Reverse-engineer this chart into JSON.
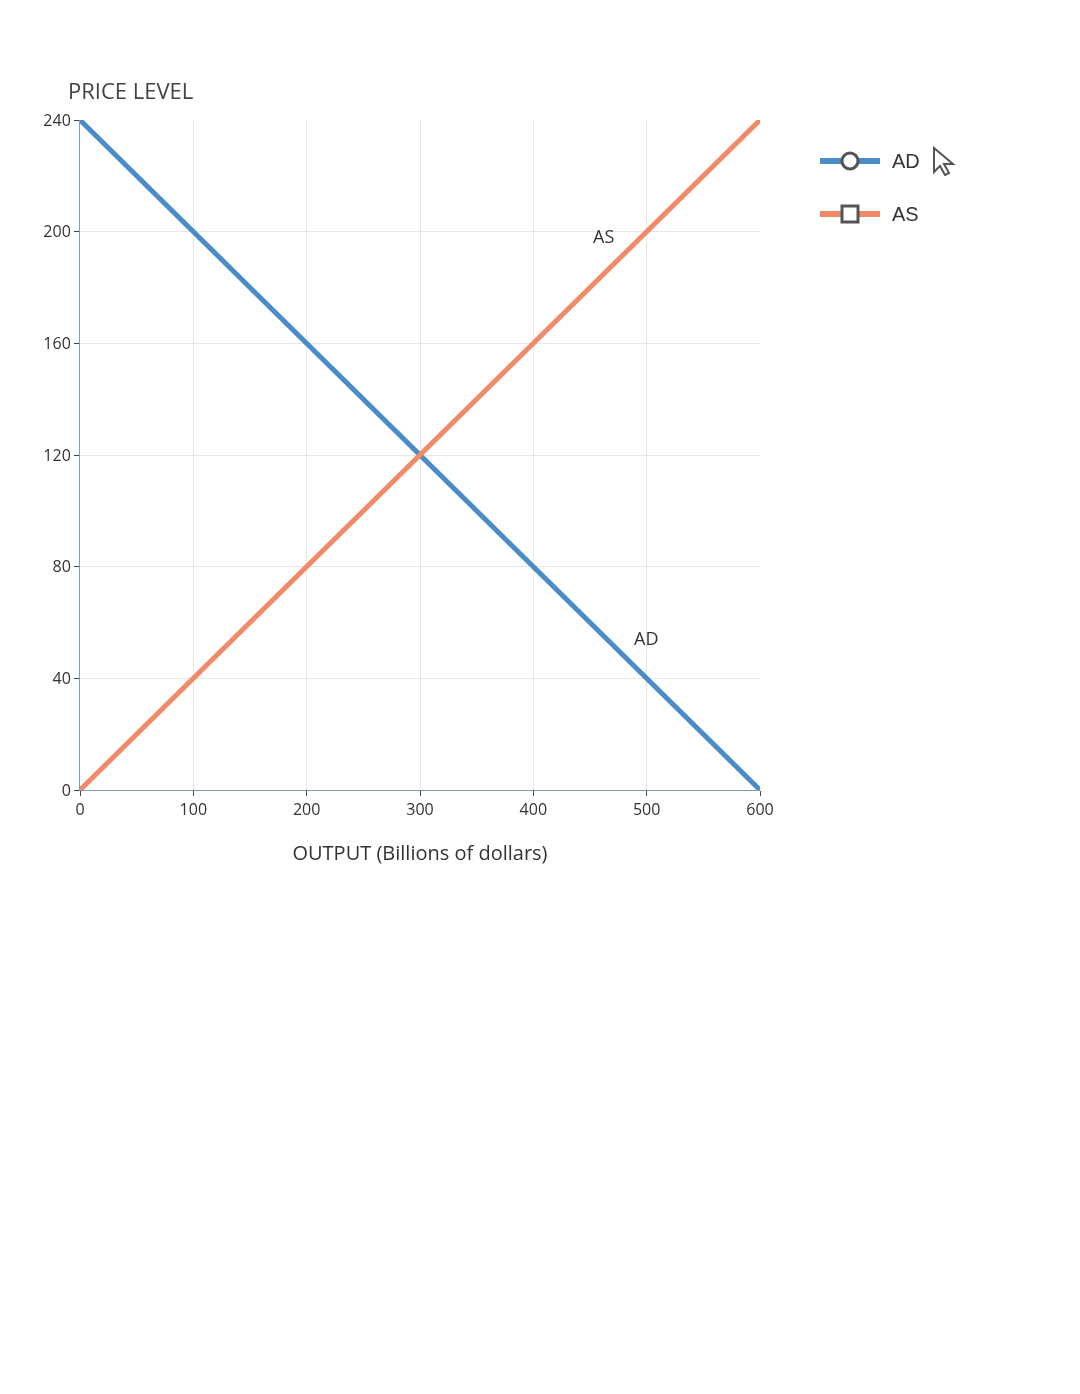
{
  "chart_data": {
    "type": "line",
    "xlabel": "OUTPUT (Billions of dollars)",
    "ylabel": "PRICE LEVEL",
    "legend": "right",
    "x": [
      0,
      600
    ],
    "xlim": [
      0,
      600
    ],
    "xticks": [
      0,
      100,
      200,
      300,
      400,
      500,
      600
    ],
    "ylim": [
      0,
      240
    ],
    "yticks": [
      0,
      40,
      80,
      120,
      160,
      200,
      240
    ],
    "grid": true,
    "series": [
      {
        "name": "AD",
        "color": "#4a8cc8",
        "values": [
          240,
          0
        ]
      },
      {
        "name": "AS",
        "color": "#f08a68",
        "values": [
          0,
          240
        ]
      }
    ]
  }
}
